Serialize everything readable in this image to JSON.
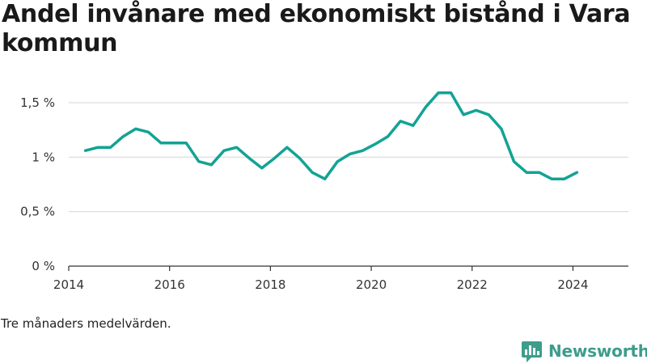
{
  "title": "Andel invånare med ekonomiskt bistånd i Vara kommun",
  "note": "Tre månaders medelvärden.",
  "brand": {
    "name": "Newsworthy",
    "color": "#3d9c8c",
    "icon": "newsworthy-logo-icon"
  },
  "colors": {
    "line": "#12a394",
    "grid": "#d6d6d6",
    "axis": "#333333"
  },
  "chart_data": {
    "type": "line",
    "title": "Andel invånare med ekonomiskt bistånd i Vara kommun",
    "xlabel": "",
    "ylabel": "",
    "x_ticks": [
      2014,
      2016,
      2018,
      2020,
      2022,
      2024
    ],
    "x_tick_labels": [
      "2014",
      "2016",
      "2018",
      "2020",
      "2022",
      "2024"
    ],
    "y_ticks": [
      0,
      0.5,
      1,
      1.5
    ],
    "y_tick_labels": [
      "0 %",
      "0,5 %",
      "1 %",
      "1,5 %"
    ],
    "xlim": [
      2014,
      2025.1
    ],
    "ylim": [
      0,
      1.7
    ],
    "grid": true,
    "series": [
      {
        "x": [
          2014.33,
          2014.58,
          2014.83,
          2015.08,
          2015.33,
          2015.58,
          2015.83,
          2016.08,
          2016.33,
          2016.58,
          2016.83,
          2017.08,
          2017.33,
          2017.58,
          2017.83,
          2018.08,
          2018.33,
          2018.58,
          2018.83,
          2019.08,
          2019.33,
          2019.58,
          2019.83,
          2020.08,
          2020.33,
          2020.58,
          2020.83,
          2021.08,
          2021.33,
          2021.58,
          2021.83,
          2022.08,
          2022.33,
          2022.58,
          2022.83,
          2023.08,
          2023.33,
          2023.58,
          2023.83,
          2024.08
        ],
        "values": [
          1.06,
          1.09,
          1.09,
          1.19,
          1.26,
          1.23,
          1.13,
          1.13,
          1.13,
          0.96,
          0.93,
          1.06,
          1.09,
          0.99,
          0.9,
          0.99,
          1.09,
          0.99,
          0.86,
          0.8,
          0.96,
          1.03,
          1.06,
          1.12,
          1.19,
          1.33,
          1.29,
          1.46,
          1.59,
          1.59,
          1.39,
          1.43,
          1.39,
          1.26,
          0.96,
          0.86,
          0.86,
          0.8,
          0.8,
          0.86
        ]
      }
    ]
  }
}
